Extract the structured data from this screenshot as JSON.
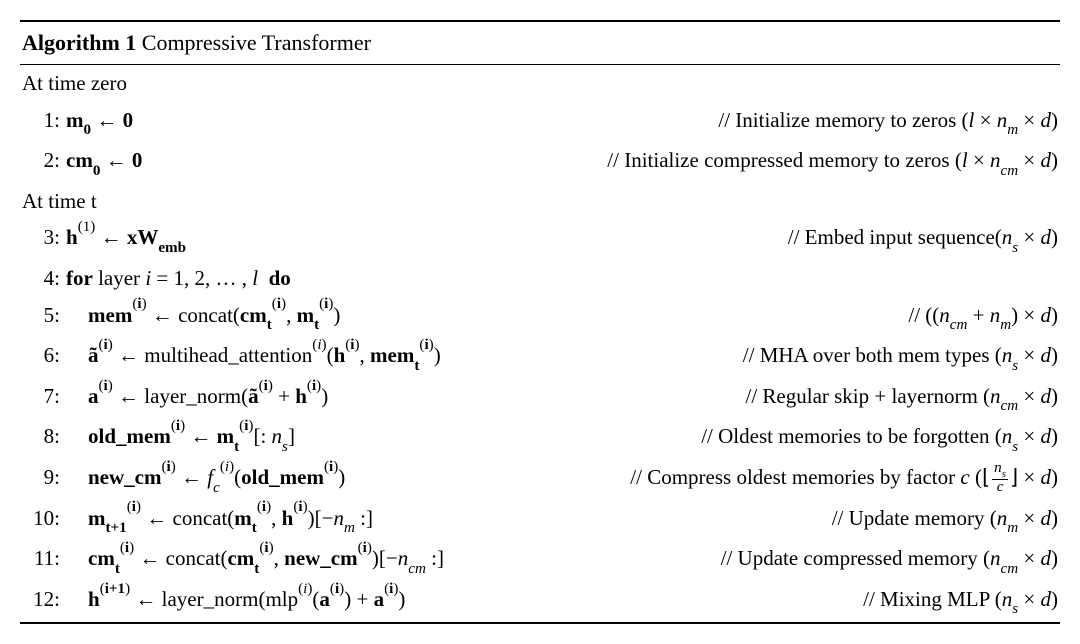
{
  "title_bold": "Algorithm 1",
  "title_rest": " Compressive Transformer",
  "section_zero": "At time zero",
  "section_t": "At time t",
  "lines": {
    "l1": {
      "num": "1:",
      "code": "<b>m<sub class='bsub'>0</sub></b> ← <b>0</b>",
      "comment": "// Initialize memory to zeros (<i>l</i> × <i>n<sub>m</sub></i> × <i>d</i>)"
    },
    "l2": {
      "num": "2:",
      "code": "<b>cm<sub class='bsub'>0</sub></b> ← <b>0</b>",
      "comment": "// Initialize compressed memory to zeros (<i>l</i> × <i>n<sub>cm</sub></i> × <i>d</i>)"
    },
    "l3": {
      "num": "3:",
      "code": "<b>h</b><sup>(1)</sup> ← <b>xW<sub>emb</sub></b>",
      "comment": "// Embed input sequence(<i>n<sub>s</sub></i> × <i>d</i>)"
    },
    "l4": {
      "num": "4:",
      "code": "<b>for</b> layer <i>i</i> = 1, 2, … , <i>l</i> &nbsp;<b>do</b>",
      "comment": ""
    },
    "l5": {
      "num": "5:",
      "code": "<b>mem</b><sup>(<b>i</b>)</sup> ← concat(<b>cm</b><sub class='bsub'>t</sub><sup>(<b>i</b>)</sup>, <b>m</b><sub class='bsub'>t</sub><sup>(<b>i</b>)</sup>)",
      "comment": "// ((<i>n<sub>cm</sub></i> + <i>n<sub>m</sub></i>) × <i>d</i>)"
    },
    "l6": {
      "num": "6:",
      "code": "<b>ã</b><sup>(<b>i</b>)</sup> ← multihead_attention<sup>(<i>i</i>)</sup>(<b>h</b><sup>(<b>i</b>)</sup>, <b>mem</b><sub class='bsub'>t</sub><sup>(<b>i</b>)</sup>)",
      "comment": "// MHA over both mem types (<i>n<sub>s</sub></i> × <i>d</i>)"
    },
    "l7": {
      "num": "7:",
      "code": "<b>a</b><sup>(<b>i</b>)</sup> ← layer_norm(<b>ã</b><sup>(<b>i</b>)</sup> + <b>h</b><sup>(<b>i</b>)</sup>)",
      "comment": "// Regular skip + layernorm (<i>n<sub>cm</sub></i> × <i>d</i>)"
    },
    "l8": {
      "num": "8:",
      "code": "<b>old_mem</b><sup>(<b>i</b>)</sup> ← <b>m</b><sub class='bsub'>t</sub><sup>(<b>i</b>)</sup>[: <i>n<sub>s</sub></i>]",
      "comment": "// Oldest memories to be forgotten (<i>n<sub>s</sub></i> × <i>d</i>)"
    },
    "l9": {
      "num": "9:",
      "code": "<b>new_cm</b><sup>(<b>i</b>)</sup> ← <i>f</i><sub><i>c</i></sub><sup>(<i>i</i>)</sup>(<b>old_mem</b><sup>(<b>i</b>)</sup>)",
      "comment": "// Compress oldest memories by factor <i>c</i> (⌊<span class='frac'><span class='num'><i>n<sub>s</sub></i></span><span class='den'><i>c</i></span></span>⌋ × <i>d</i>)"
    },
    "l10": {
      "num": "10:",
      "code": "<b>m</b><sub class='bsub'>t+1</sub><sup>(<b>i</b>)</sup> ← concat(<b>m</b><sub class='bsub'>t</sub><sup>(<b>i</b>)</sup>, <b>h</b><sup>(<b>i</b>)</sup>)[−<i>n<sub>m</sub></i> :]",
      "comment": "// Update memory (<i>n<sub>m</sub></i> × <i>d</i>)"
    },
    "l11": {
      "num": "11:",
      "code": "<b>cm</b><sub class='bsub'>t</sub><sup>(<b>i</b>)</sup> ← concat(<b>cm</b><sub class='bsub'>t</sub><sup>(<b>i</b>)</sup>, <b>new_cm</b><sup>(<b>i</b>)</sup>)[−<i>n<sub>cm</sub></i> :]",
      "comment": "// Update compressed memory (<i>n<sub>cm</sub></i> × <i>d</i>)"
    },
    "l12": {
      "num": "12:",
      "code": "<b>h</b><sup>(<b>i+1</b>)</sup> ← layer_norm(mlp<sup>(<i>i</i>)</sup>(<b>a</b><sup>(<b>i</b>)</sup>) + <b>a</b><sup>(<b>i</b>)</sup>)",
      "comment": "// Mixing MLP (<i>n<sub>s</sub></i> × <i>d</i>)"
    }
  }
}
